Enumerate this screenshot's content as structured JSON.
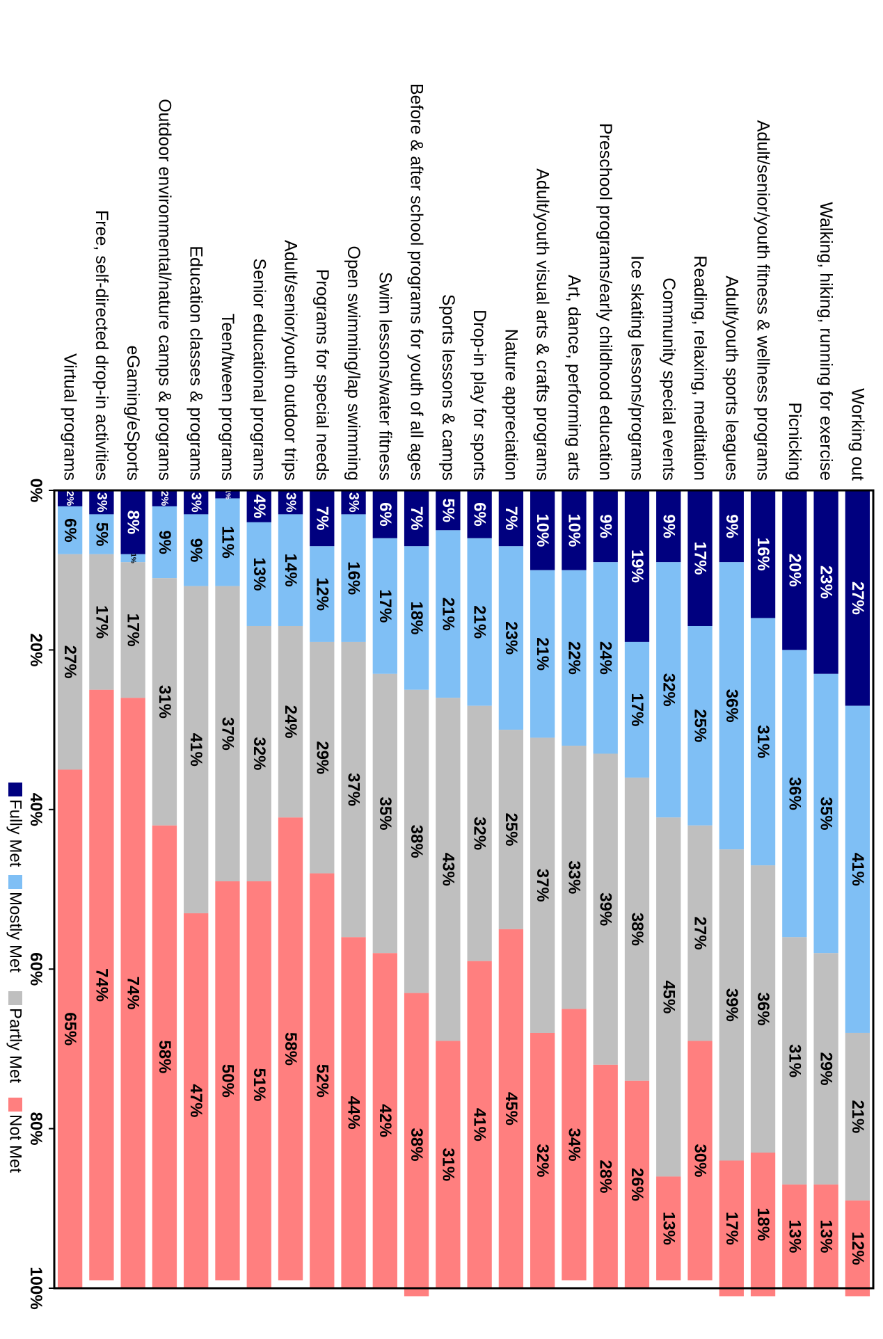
{
  "chart_data": {
    "type": "bar",
    "orientation": "horizontal-stacked-100",
    "title": "",
    "xlabel": "",
    "ylabel": "",
    "xlim": [
      0,
      100
    ],
    "x_tick_labels": [
      "0%",
      "20%",
      "40%",
      "60%",
      "80%",
      "100%"
    ],
    "x_ticks": [
      0,
      20,
      40,
      60,
      80,
      100
    ],
    "grid": false,
    "legend_position": "bottom",
    "categories": [
      "Working out",
      "Walking, hiking, running for exercise",
      "Picnicking",
      "Adult/senior/youth fitness & wellness programs",
      "Adult/youth sports leagues",
      "Reading, relaxing, meditation",
      "Community special events",
      "Ice skating lessons/programs",
      "Preschool programs/early childhood education",
      "Art, dance, performing arts",
      "Adult/youth visual arts & crafts programs",
      "Nature appreciation",
      "Drop-in play for sports",
      "Sports lessons & camps",
      "Before & after school programs for youth of all ages",
      "Swim lessons/water fitness",
      "Open swimming/lap swimming",
      "Programs for special needs",
      "Adult/senior/youth outdoor trips",
      "Senior educational programs",
      "Teen/tween programs",
      "Education classes & programs",
      "Outdoor environmental/nature camps & programs",
      "eGaming/eSports",
      "Free, self-directed drop-in activities",
      "Virtual programs"
    ],
    "series": [
      {
        "name": "Fully Met",
        "color": "#00007f",
        "label_color": "#ffffff",
        "values": [
          27,
          23,
          20,
          16,
          9,
          17,
          9,
          19,
          9,
          10,
          10,
          7,
          6,
          5,
          7,
          6,
          3,
          7,
          3,
          4,
          1,
          3,
          2,
          8,
          3,
          2
        ]
      },
      {
        "name": "Mostly Met",
        "color": "#7fbff5",
        "label_color": "#000000",
        "values": [
          41,
          35,
          36,
          31,
          36,
          25,
          32,
          17,
          24,
          22,
          21,
          23,
          21,
          21,
          18,
          17,
          16,
          12,
          14,
          13,
          11,
          9,
          9,
          1,
          5,
          6
        ]
      },
      {
        "name": "Partly Met",
        "color": "#bfbfbf",
        "label_color": "#000000",
        "values": [
          21,
          29,
          31,
          36,
          39,
          27,
          45,
          38,
          39,
          33,
          37,
          25,
          32,
          43,
          38,
          35,
          37,
          29,
          24,
          32,
          37,
          41,
          31,
          17,
          17,
          27
        ]
      },
      {
        "name": "Not Met",
        "color": "#ff7f7f",
        "label_color": "#000000",
        "values": [
          12,
          13,
          13,
          18,
          17,
          30,
          13,
          26,
          28,
          34,
          32,
          45,
          41,
          31,
          38,
          42,
          44,
          52,
          58,
          51,
          50,
          47,
          58,
          74,
          74,
          65
        ]
      }
    ]
  }
}
